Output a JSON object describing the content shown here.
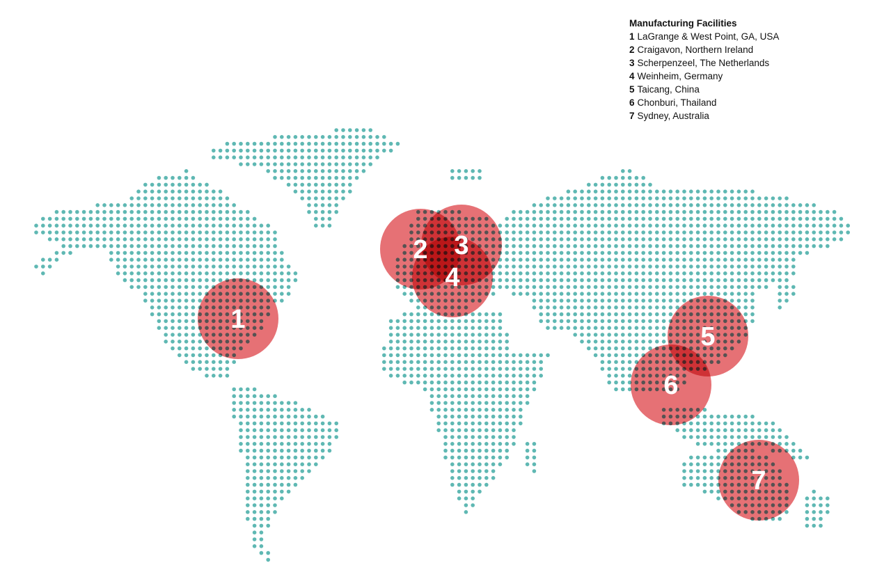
{
  "legend": {
    "title": "Manufacturing Facilities",
    "facilities": [
      {
        "number": "1",
        "name": "LaGrange & West Point, GA, USA"
      },
      {
        "number": "2",
        "name": "Craigavon, Northern Ireland"
      },
      {
        "number": "3",
        "name": "Scherpenzeel, The Netherlands"
      },
      {
        "number": "4",
        "name": "Weinheim, Germany"
      },
      {
        "number": "5",
        "name": "Taicang, China"
      },
      {
        "number": "6",
        "name": "Chonburi, Thailand"
      },
      {
        "number": "7",
        "name": "Sydney, Australia"
      }
    ]
  },
  "colors": {
    "land_dot": "#5fb8b3",
    "marker": "#dc3a40"
  }
}
